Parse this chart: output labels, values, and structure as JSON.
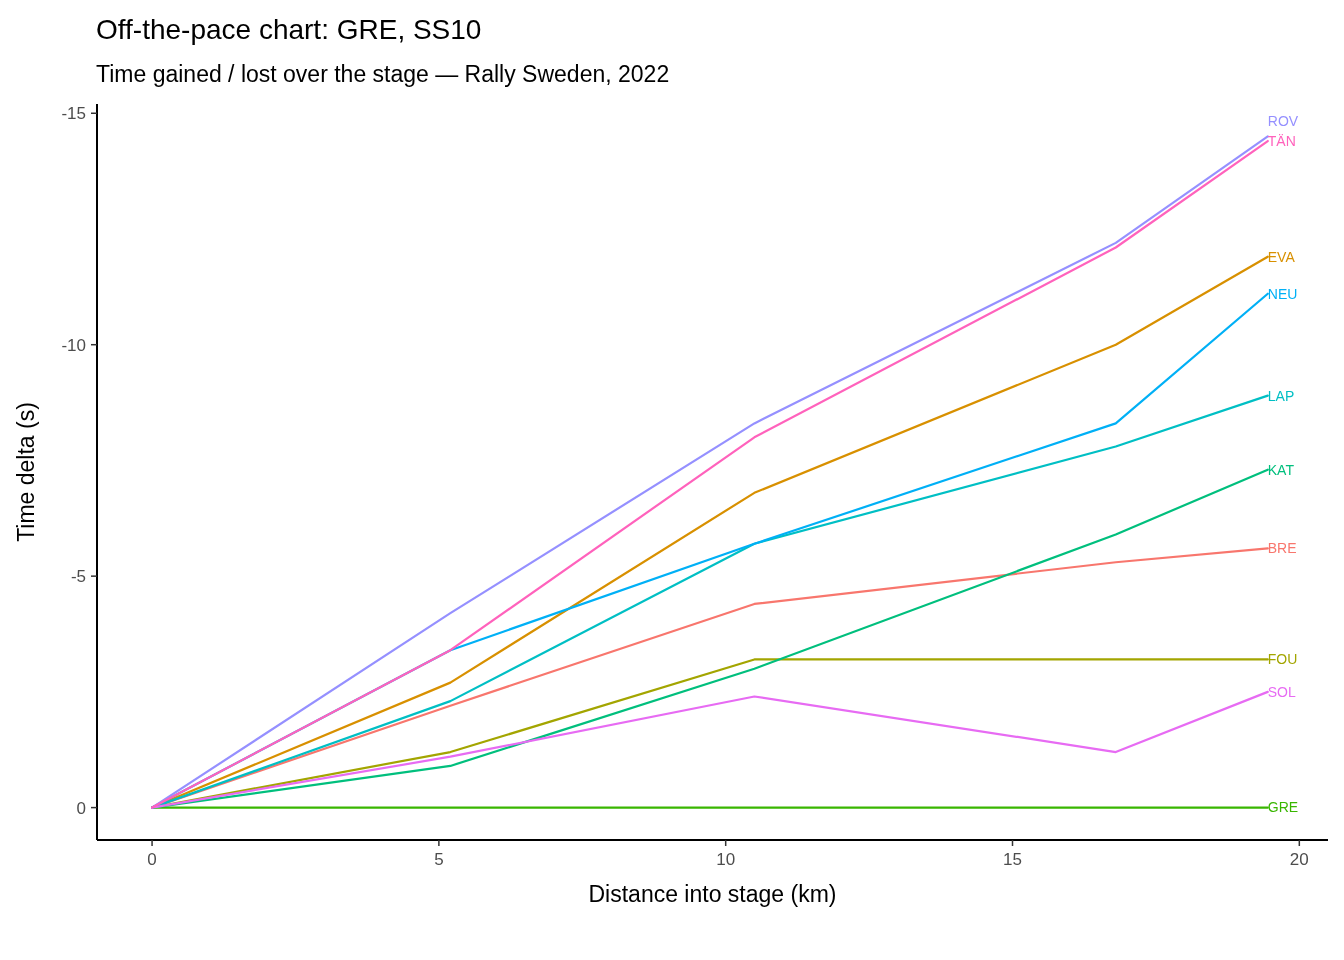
{
  "chart_data": {
    "type": "line",
    "title": "Off-the-pace chart: GRE, SS10",
    "subtitle": "Time gained / lost over the stage — Rally Sweden, 2022",
    "xlabel": "Distance into stage (km)",
    "ylabel": "Time delta (s)",
    "x": [
      0,
      5.2,
      10.5,
      16.8,
      19.45
    ],
    "xlim": [
      -0.96,
      20.5
    ],
    "xticks": [
      0,
      5,
      10,
      15,
      20
    ],
    "ylim": [
      0.7,
      -15.2
    ],
    "yticks": [
      -15,
      -10,
      -5,
      0
    ],
    "grid": false,
    "series": [
      {
        "name": "BRE",
        "color": "#f8766d",
        "values": [
          0,
          -2.2,
          -4.4,
          -5.3,
          -5.6
        ]
      },
      {
        "name": "EVA",
        "color": "#d89000",
        "values": [
          0,
          -2.7,
          -6.8,
          -10.0,
          -11.9
        ]
      },
      {
        "name": "FOU",
        "color": "#a3a500",
        "values": [
          0,
          -1.2,
          -3.2,
          -3.2,
          -3.2
        ]
      },
      {
        "name": "GRE",
        "color": "#39b600",
        "values": [
          0,
          0,
          0,
          0,
          0
        ]
      },
      {
        "name": "KAT",
        "color": "#00bf7d",
        "values": [
          0,
          -0.9,
          -3.0,
          -5.9,
          -7.3
        ]
      },
      {
        "name": "LAP",
        "color": "#00bfc4",
        "values": [
          0,
          -2.3,
          -5.7,
          -7.8,
          -8.9
        ]
      },
      {
        "name": "NEU",
        "color": "#00b0f6",
        "values": [
          0,
          -3.4,
          -5.7,
          -8.3,
          -11.1
        ]
      },
      {
        "name": "ROV",
        "color": "#9590ff",
        "values": [
          0,
          -4.2,
          -8.3,
          -12.2,
          -14.5
        ]
      },
      {
        "name": "SOL",
        "color": "#e76bf3",
        "values": [
          0,
          -1.1,
          -2.4,
          -1.2,
          -2.5
        ]
      },
      {
        "name": "TÄN",
        "color": "#ff62bc",
        "values": [
          0,
          -3.4,
          -8.0,
          -12.1,
          -14.4
        ]
      }
    ]
  }
}
